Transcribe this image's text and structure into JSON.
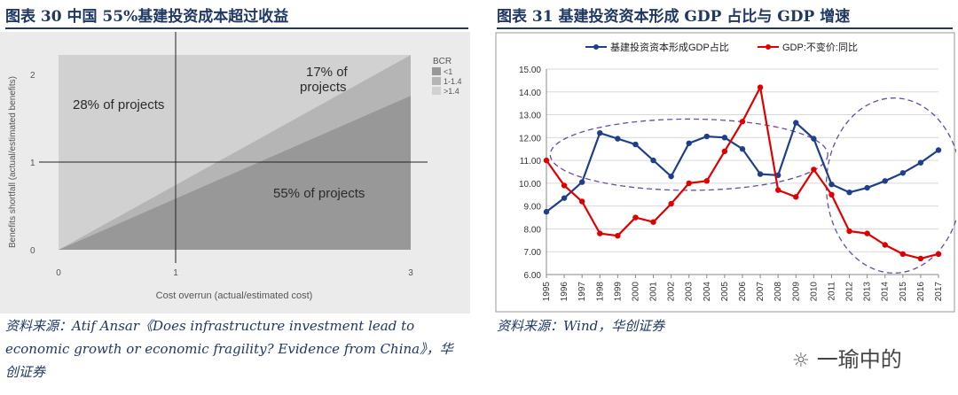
{
  "left": {
    "figure_title": "图表 30 中国 55%基建投资成本超过收益",
    "source": "资料来源：Atif Ansar《Does infrastructure investment lead to economic growth or economic fragility? Evidence from China》，华创证券"
  },
  "right": {
    "figure_title": "图表 31 基建投资资本形成 GDP 占比与 GDP 增速",
    "source": "资料来源：Wind，华创证券"
  },
  "watermark": {
    "text": "一瑜中的"
  },
  "colors": {
    "title": "#1f3864",
    "navy": "#1f3f8a",
    "red": "#e00000",
    "ellipse": "#6b4aa8"
  },
  "chart_data": [
    {
      "type": "area",
      "title": "",
      "xlabel": "Cost overrun (actual/estimated cost)",
      "ylabel": "Benefits shortfall (actual/estimated benefits)",
      "xlim": [
        0,
        3
      ],
      "ylim": [
        0,
        2.2
      ],
      "xticks": [
        "0",
        "1",
        "3"
      ],
      "yticks": [
        "0",
        "1",
        "2"
      ],
      "regions": [
        {
          "name": "BCR < 1",
          "label": "55% of projects",
          "share": 55
        },
        {
          "name": "BCR 1-1.4",
          "label": "17% of projects",
          "share": 17
        },
        {
          "name": "BCR > 1.4",
          "label": "28% of projects",
          "share": 28
        }
      ],
      "legend": {
        "title": "BCR",
        "entries": [
          "<1",
          "1-1.4",
          ">1.4"
        ],
        "position": "right"
      }
    },
    {
      "type": "line",
      "title": "",
      "categories": [
        "1995",
        "1996",
        "1997",
        "1998",
        "1999",
        "2000",
        "2001",
        "2002",
        "2003",
        "2004",
        "2005",
        "2006",
        "2007",
        "2008",
        "2009",
        "2010",
        "2011",
        "2012",
        "2013",
        "2014",
        "2015",
        "2016",
        "2017"
      ],
      "series": [
        {
          "name": "基建投资资本形成GDP占比",
          "color": "#1f3f8a",
          "values": [
            8.75,
            9.35,
            10.05,
            12.2,
            11.95,
            11.7,
            11.0,
            10.3,
            11.75,
            12.05,
            12.0,
            11.5,
            10.4,
            10.35,
            12.65,
            11.95,
            9.95,
            9.6,
            9.8,
            10.1,
            10.45,
            10.9,
            11.45
          ]
        },
        {
          "name": "GDP:不变价:同比",
          "color": "#e00000",
          "values": [
            11.0,
            9.9,
            9.2,
            7.8,
            7.7,
            8.5,
            8.3,
            9.1,
            10.0,
            10.1,
            11.4,
            12.7,
            14.2,
            9.7,
            9.4,
            10.6,
            9.5,
            7.9,
            7.8,
            7.3,
            6.9,
            6.7,
            6.9
          ]
        }
      ],
      "xlabel": "",
      "ylabel": "",
      "ylim": [
        6.0,
        15.0
      ],
      "yticks": [
        "6.00",
        "7.00",
        "8.00",
        "9.00",
        "10.00",
        "11.00",
        "12.00",
        "13.00",
        "14.00",
        "15.00"
      ],
      "legend": {
        "position": "top"
      },
      "annotations": [
        "dashed ellipse around 1998-2008",
        "dashed ellipse around 2012-2017"
      ]
    }
  ]
}
